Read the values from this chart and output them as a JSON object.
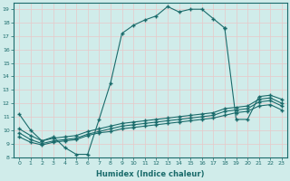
{
  "xlabel": "Humidex (Indice chaleur)",
  "xlim": [
    -0.5,
    23.5
  ],
  "ylim": [
    8,
    19.5
  ],
  "yticks": [
    8,
    9,
    10,
    11,
    12,
    13,
    14,
    15,
    16,
    17,
    18,
    19
  ],
  "xticks": [
    0,
    1,
    2,
    3,
    4,
    5,
    6,
    7,
    8,
    9,
    10,
    11,
    12,
    13,
    14,
    15,
    16,
    17,
    18,
    19,
    20,
    21,
    22,
    23
  ],
  "bg_color": "#d0ecea",
  "line_color": "#1a6b6b",
  "grid_color": "#e8c8c8",
  "line1_x": [
    0,
    1,
    2,
    3,
    4,
    5,
    6,
    7,
    8,
    9,
    10,
    11,
    12,
    13,
    14,
    15,
    16,
    17,
    18
  ],
  "line1_y": [
    11.2,
    10.0,
    9.2,
    9.5,
    8.7,
    8.2,
    8.2,
    10.8,
    13.5,
    17.2,
    17.8,
    18.2,
    18.5,
    19.2,
    18.8,
    19.0,
    19.0,
    18.3,
    17.6
  ],
  "line2_x": [
    18,
    19,
    20,
    21,
    22,
    23
  ],
  "line2_y": [
    17.6,
    10.8,
    10.8,
    12.5,
    12.6,
    12.3
  ],
  "line3_x": [
    0,
    1,
    2,
    3,
    4,
    5,
    6,
    7,
    8,
    9,
    10,
    11,
    12,
    13,
    14,
    15,
    16,
    17,
    18,
    19,
    20,
    21,
    22,
    23
  ],
  "line3_y": [
    9.8,
    9.3,
    9.0,
    9.2,
    9.3,
    9.4,
    9.7,
    9.9,
    10.1,
    10.3,
    10.4,
    10.5,
    10.6,
    10.7,
    10.8,
    10.9,
    11.0,
    11.1,
    11.4,
    11.5,
    11.6,
    12.1,
    12.2,
    11.8
  ],
  "line4_x": [
    0,
    1,
    2,
    3,
    4,
    5,
    6,
    7,
    8,
    9,
    10,
    11,
    12,
    13,
    14,
    15,
    16,
    17,
    18,
    19,
    20,
    21,
    22,
    23
  ],
  "line4_y": [
    9.5,
    9.1,
    8.9,
    9.1,
    9.2,
    9.3,
    9.6,
    9.8,
    9.9,
    10.1,
    10.2,
    10.3,
    10.4,
    10.5,
    10.6,
    10.7,
    10.8,
    10.9,
    11.1,
    11.3,
    11.4,
    11.8,
    11.9,
    11.5
  ],
  "line5_x": [
    0,
    1,
    2,
    3,
    4,
    5,
    6,
    7,
    8,
    9,
    10,
    11,
    12,
    13,
    14,
    15,
    16,
    17,
    18,
    19,
    20,
    21,
    22,
    23
  ],
  "line5_y": [
    10.1,
    9.6,
    9.2,
    9.4,
    9.5,
    9.6,
    9.9,
    10.1,
    10.3,
    10.5,
    10.6,
    10.7,
    10.8,
    10.9,
    11.0,
    11.1,
    11.2,
    11.3,
    11.6,
    11.7,
    11.8,
    12.3,
    12.4,
    12.0
  ]
}
